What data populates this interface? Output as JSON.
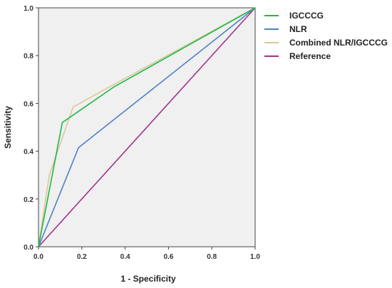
{
  "chart_data": {
    "type": "line",
    "xlabel": "1 - Specificity",
    "ylabel": "Sensitivity",
    "xlim": [
      0,
      1
    ],
    "ylim": [
      0,
      1
    ],
    "grid": false,
    "legend_position": "right",
    "x_ticks": [
      "0.0",
      "0.2",
      "0.4",
      "0.6",
      "0.8",
      "1.0"
    ],
    "y_ticks": [
      "0.0",
      "0.2",
      "0.4",
      "0.6",
      "0.8",
      "1.0"
    ],
    "series": [
      {
        "name": "IGCCCG",
        "color": "#1fb845",
        "points": [
          [
            0,
            0
          ],
          [
            0.11,
            0.52
          ],
          [
            0.35,
            0.67
          ],
          [
            1,
            1
          ]
        ]
      },
      {
        "name": "NLR",
        "color": "#4f7fc4",
        "points": [
          [
            0,
            0
          ],
          [
            0.185,
            0.415
          ],
          [
            1,
            1
          ]
        ]
      },
      {
        "name": "Combined NLR/IGCCCG",
        "color": "#d9c89a",
        "points": [
          [
            0,
            0
          ],
          [
            0.05,
            0.3
          ],
          [
            0.16,
            0.585
          ],
          [
            0.36,
            0.685
          ],
          [
            1,
            1
          ]
        ]
      },
      {
        "name": "Reference",
        "color": "#a0338c",
        "points": [
          [
            0,
            0
          ],
          [
            1,
            1
          ]
        ]
      }
    ]
  }
}
